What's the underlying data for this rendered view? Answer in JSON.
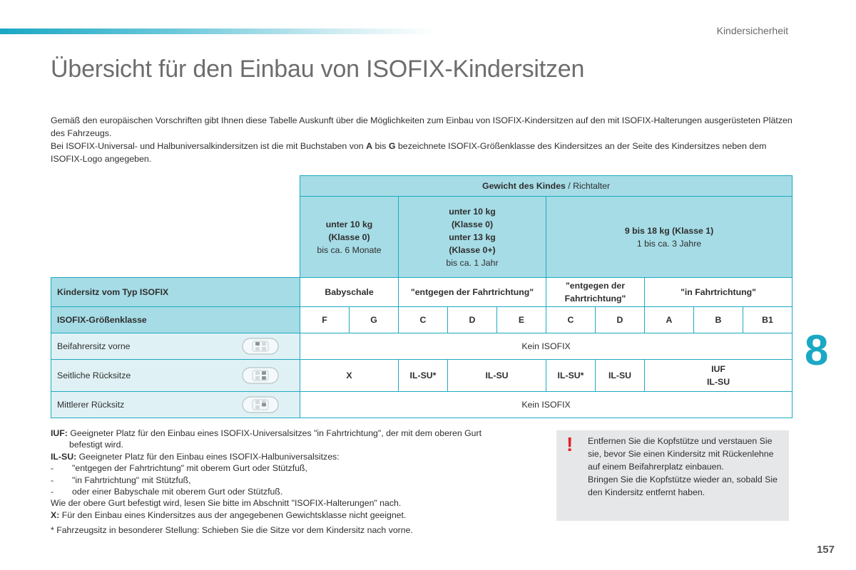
{
  "header": {
    "section": "Kindersicherheit"
  },
  "title": "Übersicht für den Einbau von ISOFIX-Kindersitzen",
  "intro": {
    "p1": "Gemäß den europäischen Vorschriften gibt Ihnen diese Tabelle Auskunft über die Möglichkeiten zum Einbau von ISOFIX-Kindersitzen auf den mit ISOFIX-Halterungen ausgerüsteten Plätzen des Fahrzeugs.",
    "p2a": "Bei ISOFIX-Universal- und Halbuniversalkindersitzen ist die mit Buchstaben von ",
    "p2b": "A",
    "p2c": " bis ",
    "p2d": "G",
    "p2e": " bezeichnete ISOFIX-Größenklasse des Kindersitzes an der Seite des Kindersitzes neben dem ISOFIX-Logo angegeben."
  },
  "table": {
    "weight_header_bold": "Gewicht des Kindes",
    "weight_header_rest": " / Richtalter",
    "groups": [
      {
        "l1": "unter 10 kg",
        "l2": "(Klasse 0)",
        "l3": "",
        "l4": "",
        "age": "bis ca. 6 Monate"
      },
      {
        "l1": "unter 10 kg",
        "l2": "(Klasse 0)",
        "l3": "unter 13 kg",
        "l4": "(Klasse 0+)",
        "age": "bis ca. 1 Jahr"
      },
      {
        "l1": "9 bis 18 kg (Klasse 1)",
        "l2": "",
        "l3": "",
        "l4": "",
        "age": "1 bis ca. 3 Jahre"
      }
    ],
    "type_row": {
      "label": "Kindersitz vom Typ ISOFIX",
      "babyschale": "Babyschale",
      "rear1": "\"entgegen der Fahrtrichtung\"",
      "rear2": "\"entgegen der Fahrtrichtung\"",
      "forward": "\"in Fahrtrichtung\""
    },
    "size_row": {
      "label": "ISOFIX-Größenklasse",
      "classes": [
        "F",
        "G",
        "C",
        "D",
        "E",
        "C",
        "D",
        "A",
        "B",
        "B1"
      ]
    },
    "seats": [
      {
        "label": "Beifahrersitz vorne",
        "value": "Kein ISOFIX"
      },
      {
        "label": "Seitliche Rücksitze",
        "x": "X",
        "ilsu_star1": "IL-SU*",
        "ilsu1": "IL-SU",
        "ilsu_star2": "IL-SU*",
        "ilsu2": "IL-SU",
        "iuf": "IUF",
        "iuf_ilsu": "IL-SU"
      },
      {
        "label": "Mittlerer Rücksitz",
        "value": "Kein ISOFIX"
      }
    ]
  },
  "notes": {
    "iuf_key": "IUF:",
    "iuf_text": " Geeigneter Platz für den Einbau eines ISOFIX-Universalsitzes \"in Fahrtrichtung\", der mit dem oberen Gurt",
    "iuf_text2": "befestigt wird.",
    "ilsu_key": "IL-SU:",
    "ilsu_text": " Geeigneter Platz für den Einbau eines ISOFIX-Halbuniversalsitzes:",
    "dash1": "\"entgegen der Fahrtrichtung\" mit oberem Gurt oder Stützfuß,",
    "dash2": "\"in Fahrtrichtung\" mit Stützfuß,",
    "dash3": "oder einer Babyschale mit oberem Gurt oder Stützfuß.",
    "dash_char": "-",
    "upper_belt": "Wie der obere Gurt befestigt wird, lesen Sie bitte im Abschnitt \"ISOFIX-Halterungen\" nach.",
    "x_key": "X:",
    "x_text": " Für den Einbau eines Kindersitzes aus der angegebenen Gewichtsklasse nicht geeignet.",
    "footnote": "* Fahrzeugsitz in besonderer Stellung: Schieben Sie die Sitze vor dem Kindersitz nach vorne."
  },
  "warning": {
    "mark": "!",
    "p1": "Entfernen Sie die Kopfstütze und verstauen Sie sie, bevor Sie einen Kindersitz mit Rückenlehne auf einem Beifahrerplatz einbauen.",
    "p2": "Bringen Sie die Kopfstütze wieder an, sobald Sie den Kindersitz entfernt haben."
  },
  "chapter_number": "8",
  "page_number": "157",
  "colors": {
    "accent": "#1aa8c4",
    "table_header": "#a6dce6",
    "seat_cell": "#dff1f5",
    "warning_bg": "#e6e7e9",
    "warning_mark": "#e4202a"
  }
}
